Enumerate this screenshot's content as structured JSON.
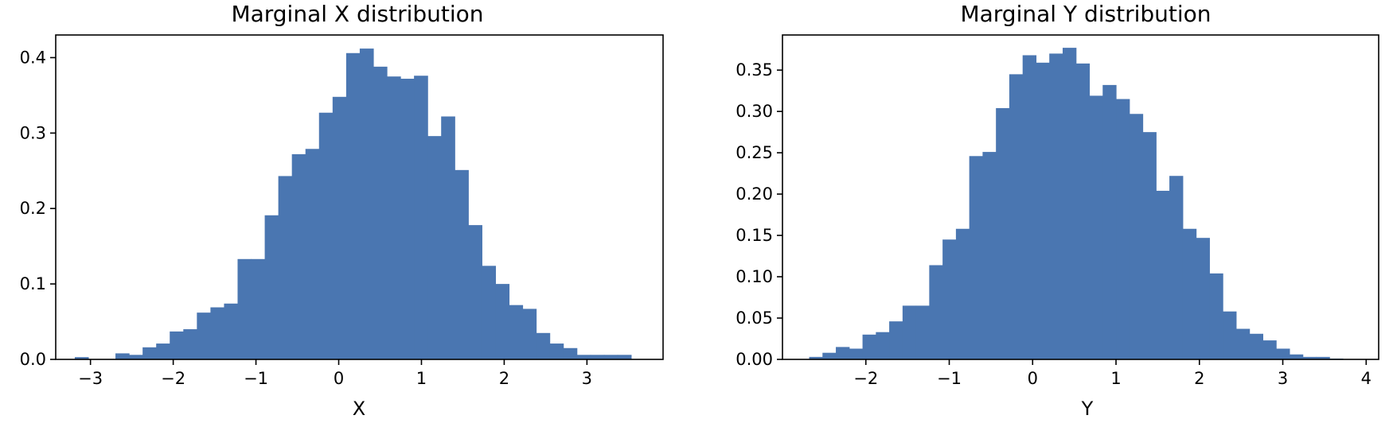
{
  "chart_data": [
    {
      "type": "bar",
      "title": "Marginal X distribution",
      "xlabel": "X",
      "ylabel": "",
      "xlim": [
        -3.42,
        3.92
      ],
      "ylim": [
        0,
        0.43
      ],
      "xticks": [
        -3,
        -2,
        -1,
        0,
        1,
        2,
        3
      ],
      "xtick_labels": [
        "−3",
        "−2",
        "−1",
        "0",
        "1",
        "2",
        "3"
      ],
      "yticks": [
        0,
        0.1,
        0.2,
        0.3,
        0.4
      ],
      "ytick_labels": [
        "0.0",
        "0.1",
        "0.2",
        "0.3",
        "0.4"
      ],
      "color": "#4a76b1",
      "grid": false,
      "bin_edges": [
        -3.19,
        -3.026,
        -2.862,
        -2.698,
        -2.534,
        -2.37,
        -2.206,
        -2.042,
        -1.878,
        -1.714,
        -1.55,
        -1.386,
        -1.222,
        -1.058,
        -0.894,
        -0.73,
        -0.566,
        -0.402,
        -0.238,
        -0.074,
        0.09,
        0.254,
        0.418,
        0.582,
        0.746,
        0.91,
        1.074,
        1.238,
        1.402,
        1.566,
        1.73,
        1.894,
        2.058,
        2.222,
        2.386,
        2.55,
        2.714,
        2.878,
        3.042,
        3.206,
        3.37,
        3.534
      ],
      "values": [
        0.003,
        0.0,
        0.0,
        0.008,
        0.006,
        0.016,
        0.021,
        0.037,
        0.04,
        0.062,
        0.069,
        0.074,
        0.133,
        0.133,
        0.191,
        0.243,
        0.272,
        0.279,
        0.327,
        0.348,
        0.406,
        0.412,
        0.388,
        0.375,
        0.372,
        0.376,
        0.296,
        0.322,
        0.251,
        0.178,
        0.124,
        0.1,
        0.072,
        0.067,
        0.035,
        0.021,
        0.015,
        0.006,
        0.006,
        0.006,
        0.006
      ]
    },
    {
      "type": "bar",
      "title": "Marginal Y distribution",
      "xlabel": "Y",
      "ylabel": "",
      "xlim": [
        -3.0,
        4.15
      ],
      "ylim": [
        0,
        0.3925
      ],
      "xticks": [
        -2,
        -1,
        0,
        1,
        2,
        3,
        4
      ],
      "xtick_labels": [
        "−2",
        "−1",
        "0",
        "1",
        "2",
        "3",
        "4"
      ],
      "yticks": [
        0,
        0.05,
        0.1,
        0.15,
        0.2,
        0.25,
        0.3,
        0.35
      ],
      "ytick_labels": [
        "0.00",
        "0.05",
        "0.10",
        "0.15",
        "0.20",
        "0.25",
        "0.30",
        "0.35"
      ],
      "color": "#4a76b1",
      "grid": false,
      "bin_edges": [
        -2.68,
        -2.52,
        -2.36,
        -2.2,
        -2.04,
        -1.88,
        -1.72,
        -1.56,
        -1.4,
        -1.24,
        -1.08,
        -0.92,
        -0.76,
        -0.6,
        -0.44,
        -0.28,
        -0.12,
        0.04,
        0.2,
        0.36,
        0.52,
        0.68,
        0.84,
        1.0,
        1.16,
        1.32,
        1.48,
        1.64,
        1.8,
        1.96,
        2.12,
        2.28,
        2.44,
        2.6,
        2.76,
        2.92,
        3.08,
        3.24,
        3.4,
        3.56,
        3.72
      ],
      "values": [
        0.003,
        0.008,
        0.015,
        0.013,
        0.03,
        0.033,
        0.046,
        0.065,
        0.065,
        0.114,
        0.145,
        0.158,
        0.246,
        0.251,
        0.304,
        0.345,
        0.368,
        0.359,
        0.37,
        0.377,
        0.358,
        0.319,
        0.332,
        0.315,
        0.297,
        0.275,
        0.204,
        0.222,
        0.158,
        0.147,
        0.104,
        0.058,
        0.037,
        0.031,
        0.023,
        0.013,
        0.006,
        0.003,
        0.003,
        0.001
      ]
    }
  ]
}
